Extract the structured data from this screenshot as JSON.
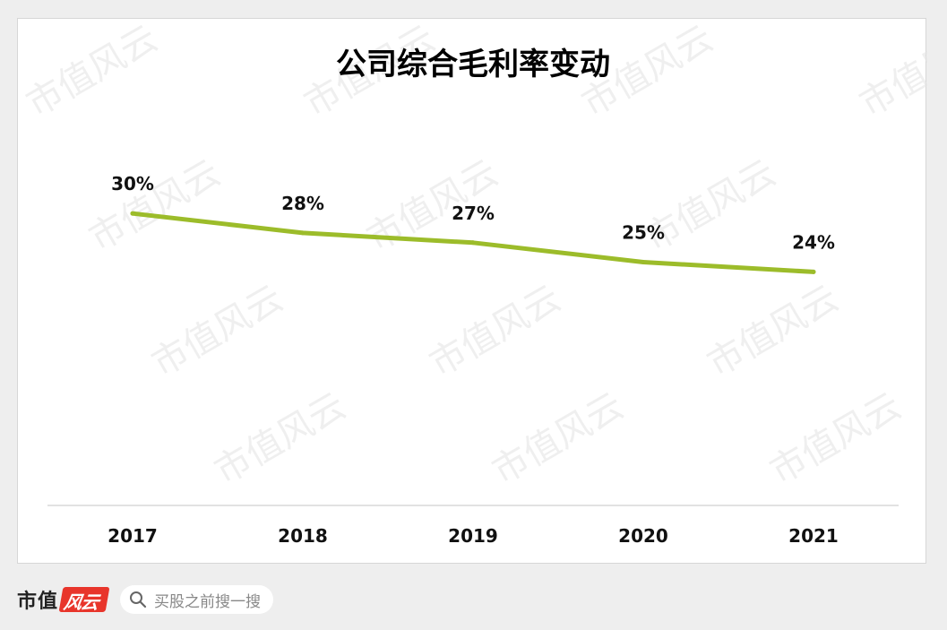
{
  "chart_data": {
    "type": "line",
    "title": "公司综合毛利率变动",
    "xlabel": "",
    "ylabel": "",
    "categories": [
      "2017",
      "2018",
      "2019",
      "2020",
      "2021"
    ],
    "values": [
      30,
      28,
      27,
      25,
      24
    ],
    "data_labels": [
      "30%",
      "28%",
      "27%",
      "25%",
      "24%"
    ],
    "ylim": [
      0,
      50
    ],
    "line_color": "#9cbc2a",
    "grid": false,
    "legend": "none"
  },
  "watermark": {
    "text": "市值风云"
  },
  "footer": {
    "brand": "市值",
    "brand_badge": "风云",
    "search_placeholder": "买股之前搜一搜"
  }
}
